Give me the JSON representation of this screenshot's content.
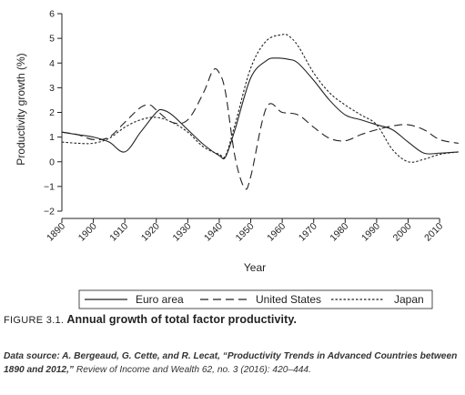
{
  "chart_data": {
    "type": "line",
    "xlabel": "Year",
    "ylabel": "Productivity growth (%)",
    "xlim": [
      1890,
      2012
    ],
    "ylim": [
      -2,
      6
    ],
    "x_ticks": [
      "1890",
      "1900",
      "1910",
      "1920",
      "1930",
      "1940",
      "1950",
      "1960",
      "1970",
      "1980",
      "1990",
      "2000",
      "2010"
    ],
    "y_ticks": [
      "−2",
      "−1",
      "0",
      "1",
      "2",
      "3",
      "4",
      "5",
      "6"
    ],
    "grid": false,
    "legend_position": "bottom",
    "series": [
      {
        "name": "Euro area",
        "style": "solid",
        "x": [
          1890,
          1895,
          1900,
          1905,
          1910,
          1915,
          1920,
          1922,
          1925,
          1930,
          1935,
          1940,
          1942,
          1945,
          1950,
          1955,
          1958,
          1962,
          1965,
          1970,
          1975,
          1980,
          1985,
          1990,
          1995,
          2000,
          2005,
          2010,
          2016
        ],
        "y": [
          1.2,
          1.1,
          1.0,
          0.8,
          0.4,
          1.2,
          2.0,
          2.1,
          1.9,
          1.3,
          0.7,
          0.25,
          0.2,
          1.3,
          3.4,
          4.1,
          4.2,
          4.15,
          4.0,
          3.3,
          2.5,
          1.9,
          1.7,
          1.5,
          1.3,
          0.8,
          0.35,
          0.35,
          0.4
        ]
      },
      {
        "name": "United States",
        "style": "dashed",
        "x": [
          1890,
          1895,
          1900,
          1905,
          1910,
          1915,
          1918,
          1920,
          1925,
          1930,
          1935,
          1938,
          1940,
          1942,
          1945,
          1948,
          1950,
          1955,
          1960,
          1965,
          1970,
          1975,
          1980,
          1985,
          1990,
          1995,
          2000,
          2005,
          2010,
          2016
        ],
        "y": [
          1.2,
          1.1,
          0.9,
          1.0,
          1.6,
          2.2,
          2.3,
          2.1,
          1.6,
          1.7,
          2.8,
          3.7,
          3.6,
          2.8,
          0.2,
          -1.05,
          -0.6,
          2.2,
          2.0,
          1.9,
          1.4,
          0.95,
          0.85,
          1.1,
          1.3,
          1.45,
          1.5,
          1.3,
          0.9,
          0.75
        ]
      },
      {
        "name": "Japan",
        "style": "dotted",
        "x": [
          1890,
          1895,
          1900,
          1905,
          1910,
          1915,
          1920,
          1925,
          1930,
          1935,
          1940,
          1942,
          1945,
          1950,
          1955,
          1960,
          1962,
          1965,
          1970,
          1975,
          1980,
          1985,
          1990,
          1995,
          2000,
          2005,
          2010,
          2016
        ],
        "y": [
          0.8,
          0.75,
          0.75,
          0.95,
          1.4,
          1.7,
          1.8,
          1.6,
          1.2,
          0.6,
          0.3,
          0.25,
          1.5,
          3.8,
          4.9,
          5.15,
          5.1,
          4.7,
          3.6,
          2.8,
          2.3,
          1.9,
          1.5,
          0.5,
          0.0,
          0.1,
          0.3,
          0.4
        ]
      }
    ]
  },
  "caption": {
    "figure_number": "FIGURE 3.1.",
    "title": "Annual growth of total factor productivity."
  },
  "source": {
    "prefix": "Data source: A. Bergeaud, G. Cette, and R. Lecat, “Productivity Trends in Advanced Countries between 1890 and 2012,”",
    "journal": " Review of Income and Wealth 62, no. 3 (2016): 420–444."
  }
}
